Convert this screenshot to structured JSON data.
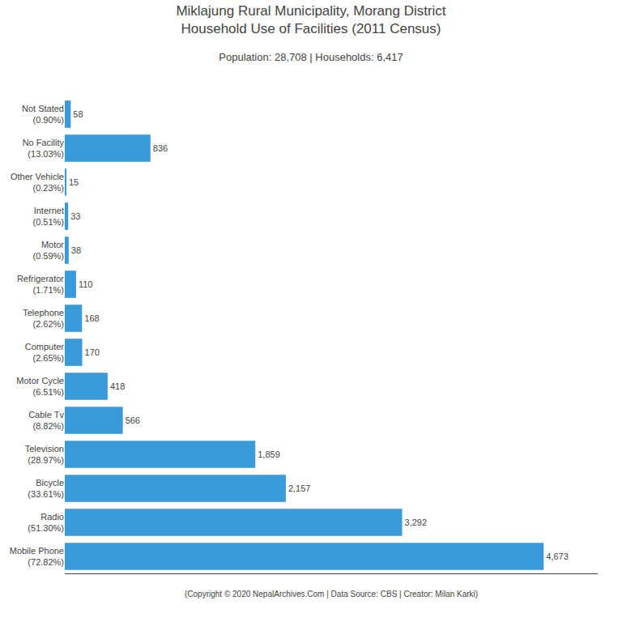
{
  "chart_data": {
    "type": "bar",
    "orientation": "horizontal",
    "title": "Miklajung Rural Municipality, Morang District\nHousehold Use of Facilities (2011 Census)",
    "subtitle": "Population: 28,708 | Households: 6,417",
    "footer": "(Copyright © 2020 NepalArchives.Com | Data Source: CBS | Creator: Milan Karki)",
    "categories": [
      "Not Stated\n(0.90%)",
      "No Facility\n(13.03%)",
      "Other Vehicle\n(0.23%)",
      "Internet\n(0.51%)",
      "Motor\n(0.59%)",
      "Refrigerator\n(1.71%)",
      "Telephone\n(2.62%)",
      "Computer\n(2.65%)",
      "Motor Cycle\n(6.51%)",
      "Cable Tv\n(8.82%)",
      "Television\n(28.97%)",
      "Bicycle\n(33.61%)",
      "Radio\n(51.30%)",
      "Mobile Phone\n(72.82%)"
    ],
    "values": [
      58,
      836,
      15,
      33,
      38,
      110,
      168,
      170,
      418,
      566,
      1859,
      2157,
      3292,
      4673
    ],
    "value_labels": [
      "58",
      "836",
      "15",
      "33",
      "38",
      "110",
      "168",
      "170",
      "418",
      "566",
      "1,859",
      "2,157",
      "3,292",
      "4,673"
    ],
    "data_labels": true,
    "color": "#3a9ad9",
    "xlim": [
      0,
      5200
    ],
    "tick_labels": "y",
    "grid": false
  }
}
